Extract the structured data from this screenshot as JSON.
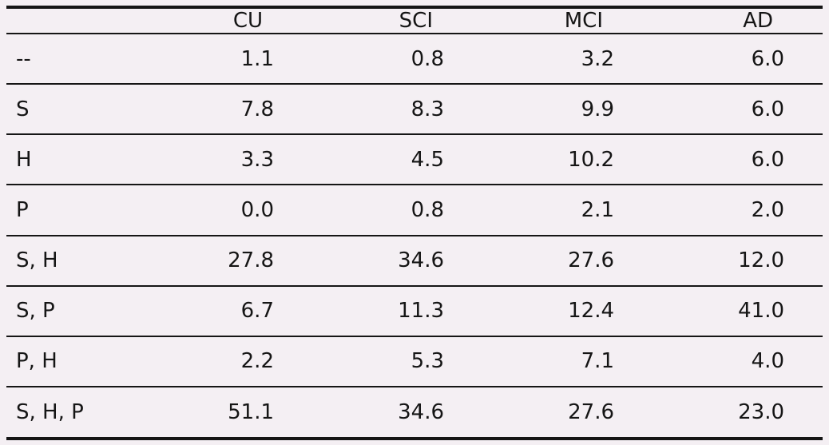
{
  "chart_data": {
    "type": "table",
    "title": "",
    "columns": [
      "",
      "CU",
      "SCI",
      "MCI",
      "AD"
    ],
    "rows": [
      {
        "label": "--",
        "values": [
          "1.1",
          "0.8",
          "3.2",
          "6.0"
        ]
      },
      {
        "label": "S",
        "values": [
          "7.8",
          "8.3",
          "9.9",
          "6.0"
        ]
      },
      {
        "label": "H",
        "values": [
          "3.3",
          "4.5",
          "10.2",
          "6.0"
        ]
      },
      {
        "label": "P",
        "values": [
          "0.0",
          "0.8",
          "2.1",
          "2.0"
        ]
      },
      {
        "label": "S, H",
        "values": [
          "27.8",
          "34.6",
          "27.6",
          "12.0"
        ]
      },
      {
        "label": "S, P",
        "values": [
          "6.7",
          "11.3",
          "12.4",
          "41.0"
        ]
      },
      {
        "label": "P, H",
        "values": [
          "2.2",
          "5.3",
          "7.1",
          "4.0"
        ]
      },
      {
        "label": "S, H, P",
        "values": [
          "51.1",
          "34.6",
          "27.6",
          "23.0"
        ]
      }
    ]
  },
  "colors": {
    "background": "#f4eff3",
    "line": "#151515",
    "text": "#151515"
  }
}
